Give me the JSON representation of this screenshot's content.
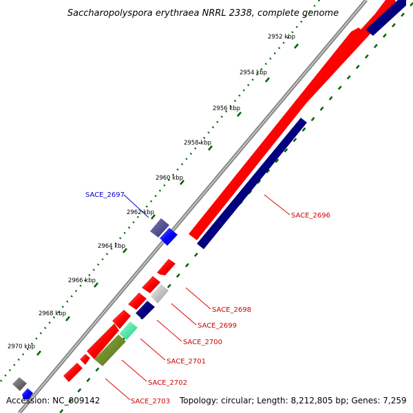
{
  "title": "Saccharopolyspora erythraea NRRL 2338, complete genome",
  "footer": {
    "accession": "Accession: NC_009142",
    "topology": "Topology: circular; Length: 8,212,805 bp; Genes: 7,259"
  },
  "ticks": [
    "2952 kbp",
    "2954 kbp",
    "2956 kbp",
    "2958 kbp",
    "2960 kbp",
    "2962 kbp",
    "2964 kbp",
    "2966 kbp",
    "2968 kbp",
    "2970 kbp"
  ],
  "gene_labels": [
    {
      "name": "SACE_2696",
      "color": "#cc0000"
    },
    {
      "name": "SACE_2697",
      "color": "#0000cc"
    },
    {
      "name": "SACE_2698",
      "color": "#cc0000"
    },
    {
      "name": "SACE_2699",
      "color": "#cc0000"
    },
    {
      "name": "SACE_2700",
      "color": "#cc0000"
    },
    {
      "name": "SACE_2701",
      "color": "#cc0000"
    },
    {
      "name": "SACE_2702",
      "color": "#cc0000"
    },
    {
      "name": "SACE_2703",
      "color": "#cc0000"
    }
  ],
  "colors": {
    "forward_cds": "#ee1111",
    "reverse_cds": "#000080",
    "other_blue": "#0000ff",
    "slate": "#4a4a8a",
    "silver": "#bbbbbb",
    "mint": "#33ee99",
    "olive": "#6b8e23",
    "gray": "#666666",
    "backbone": "#999999",
    "tick_green": "#006600"
  }
}
